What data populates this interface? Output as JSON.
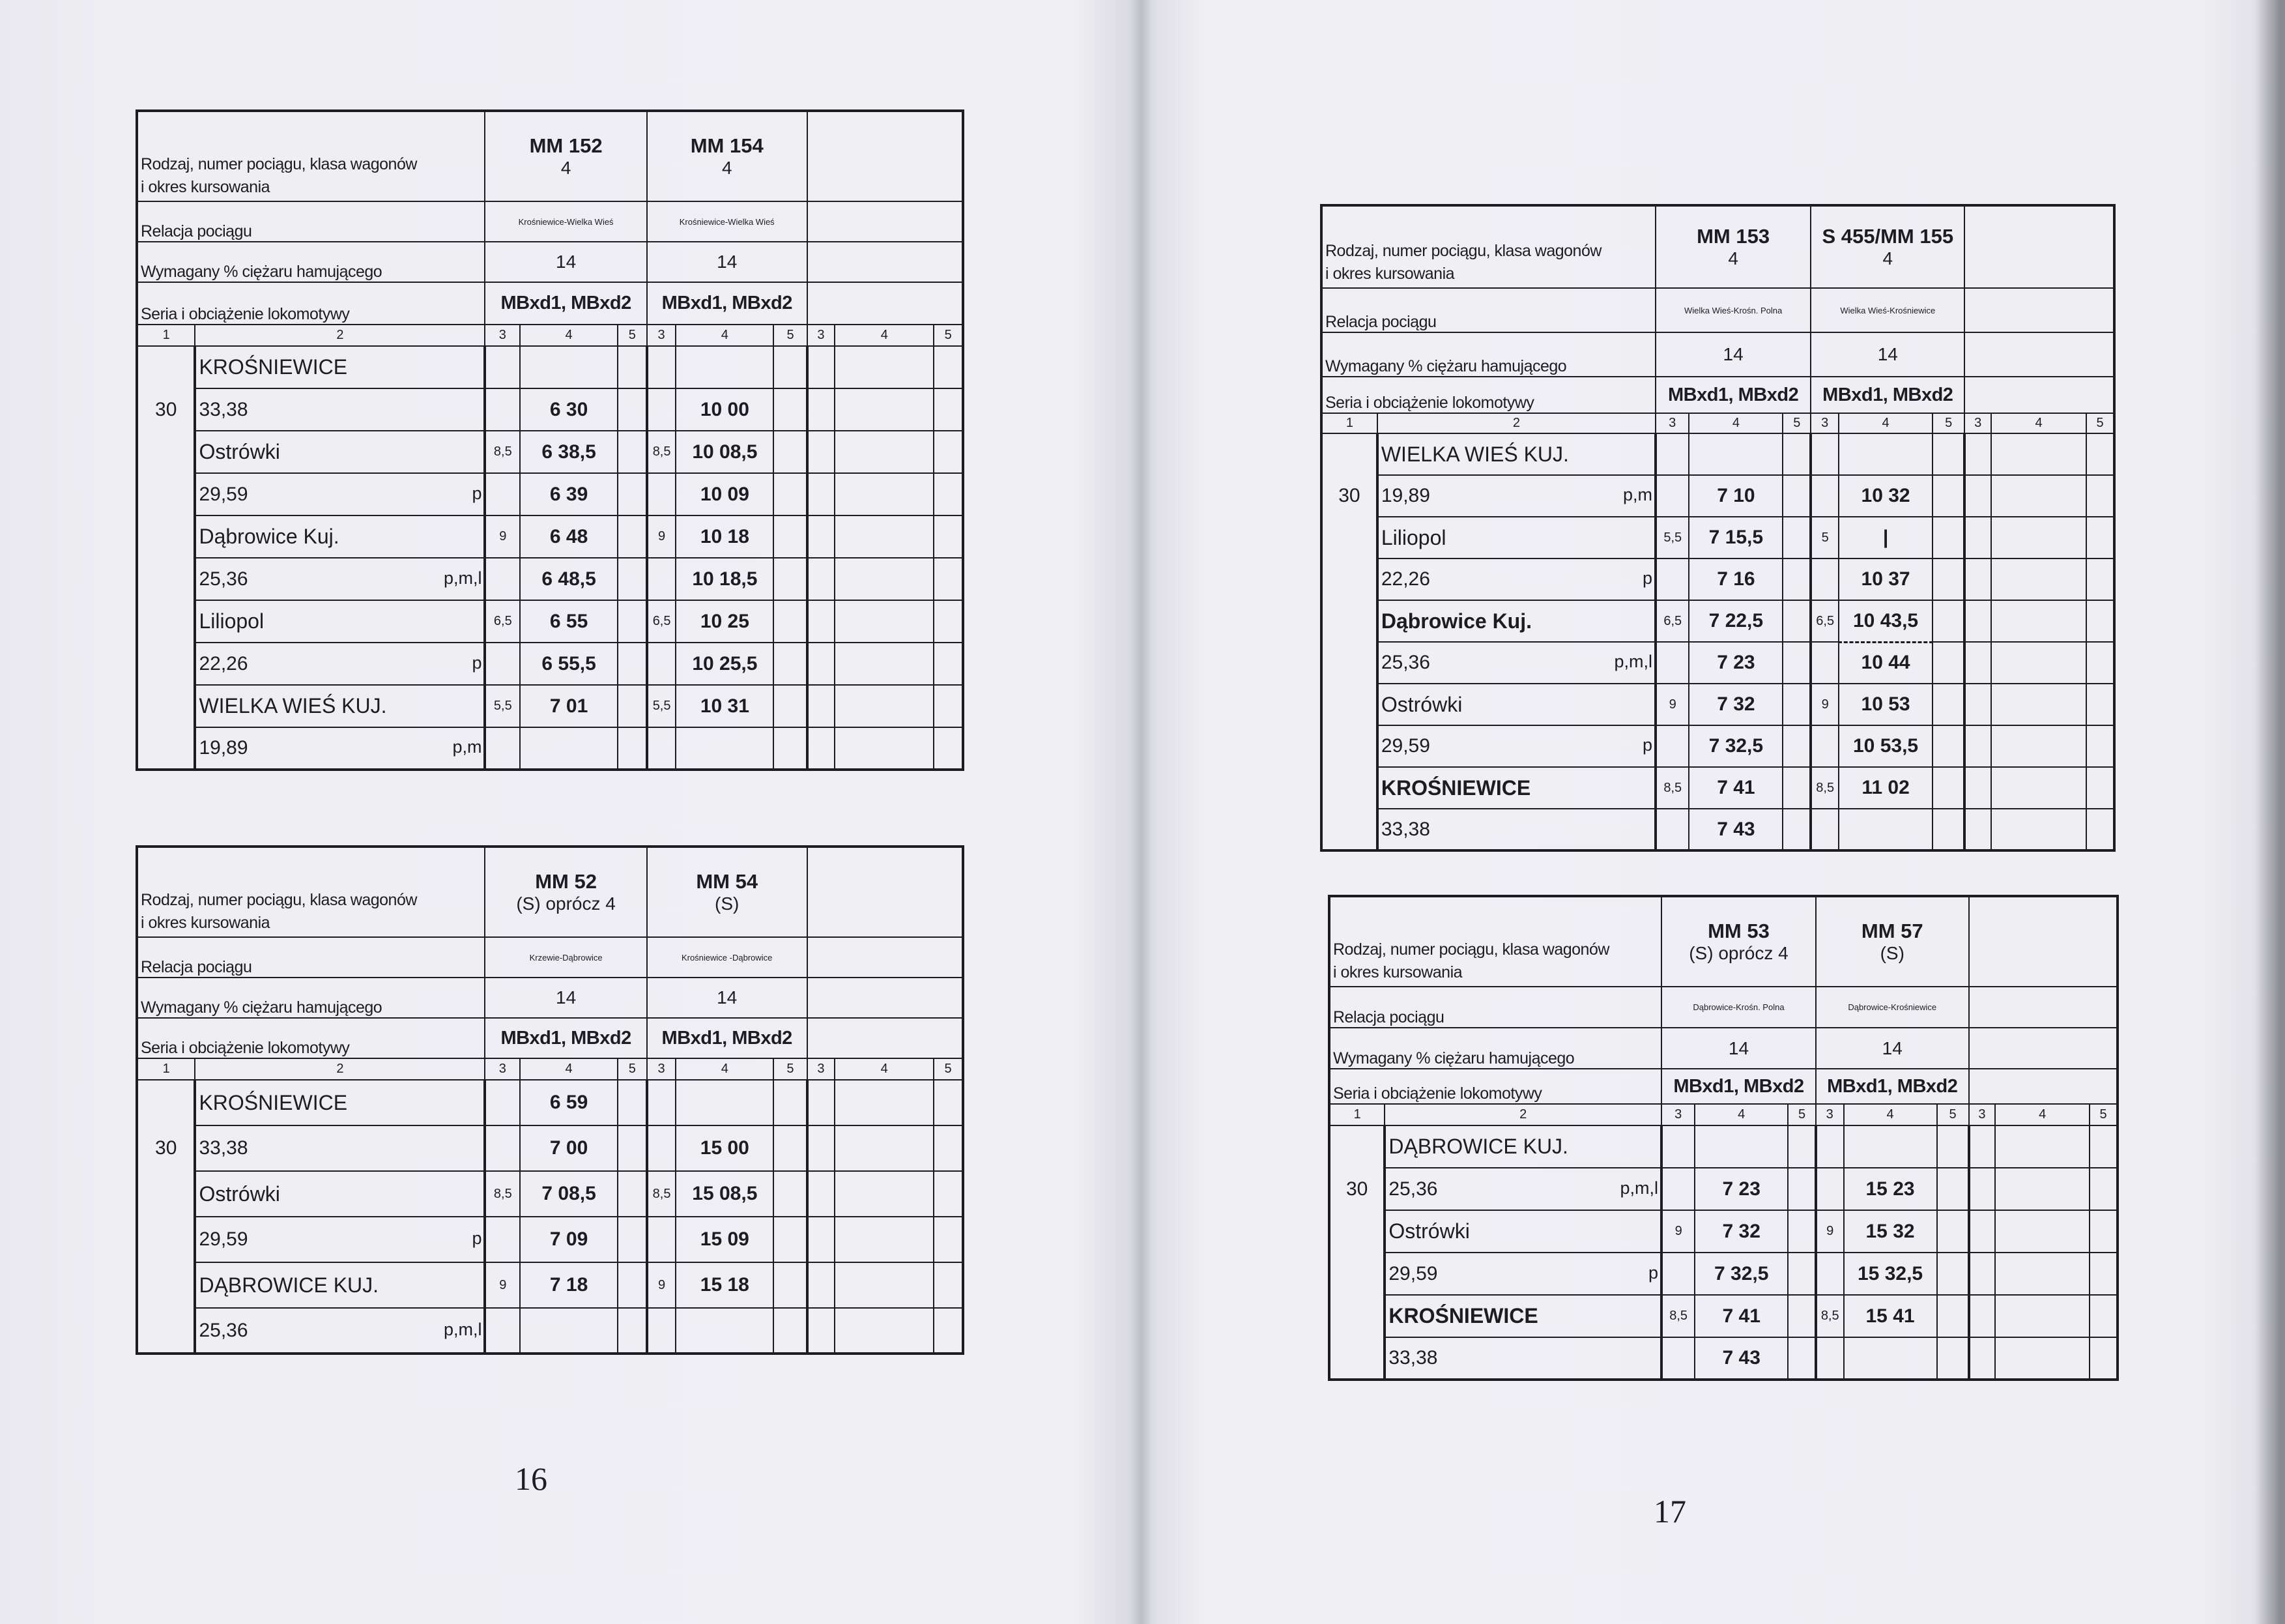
{
  "labels": {
    "row_kind": "Rodzaj, numer pociągu, klasa wagonów",
    "row_period": "i okres kursowania",
    "row_relation": "Relacja pociągu",
    "row_brake": "Wymagany % ciężaru hamującego",
    "row_loco": "Seria i obciążenie lokomotywy",
    "column_numbers": [
      "1",
      "2",
      "3",
      "4",
      "5",
      "3",
      "4",
      "5",
      "3",
      "4",
      "5"
    ]
  },
  "pages": [
    {
      "number": "16"
    },
    {
      "number": "17"
    }
  ],
  "tables": [
    {
      "trains": [
        {
          "number": "MM 152",
          "period": "4",
          "relation": "Krośniewice-Wielka Wieś",
          "brake_pct": "14",
          "loco": "MBxd1, MBxd2"
        },
        {
          "number": "MM 154",
          "period": "4",
          "relation": "Krośniewice-Wielka Wieś",
          "brake_pct": "14",
          "loco": "MBxd1, MBxd2"
        }
      ],
      "rows": [
        {
          "type": "station",
          "name": "KROŚNIEWICE",
          "cells": [
            [
              "",
              "",
              ""
            ],
            [
              "",
              "",
              ""
            ]
          ]
        },
        {
          "type": "km",
          "line": "30",
          "km": "33,38",
          "mark": "",
          "cells": [
            [
              "",
              "6 30",
              ""
            ],
            [
              "",
              "10 00",
              ""
            ]
          ]
        },
        {
          "type": "station",
          "name": "Ostrówki",
          "cells": [
            [
              "8,5",
              "6 38,5",
              ""
            ],
            [
              "8,5",
              "10 08,5",
              ""
            ]
          ]
        },
        {
          "type": "km",
          "km": "29,59",
          "mark": "p",
          "cells": [
            [
              "",
              "6 39",
              ""
            ],
            [
              "",
              "10 09",
              ""
            ]
          ]
        },
        {
          "type": "station",
          "name": "Dąbrowice Kuj.",
          "cells": [
            [
              "9",
              "6 48",
              ""
            ],
            [
              "9",
              "10 18",
              ""
            ]
          ]
        },
        {
          "type": "km",
          "km": "25,36",
          "mark": "p,m,l",
          "cells": [
            [
              "",
              "6 48,5",
              ""
            ],
            [
              "",
              "10 18,5",
              ""
            ]
          ]
        },
        {
          "type": "station",
          "name": "Liliopol",
          "cells": [
            [
              "6,5",
              "6 55",
              ""
            ],
            [
              "6,5",
              "10 25",
              ""
            ]
          ]
        },
        {
          "type": "km",
          "km": "22,26",
          "mark": "p",
          "cells": [
            [
              "",
              "6 55,5",
              ""
            ],
            [
              "",
              "10 25,5",
              ""
            ]
          ]
        },
        {
          "type": "station",
          "name": "WIELKA WIEŚ KUJ.",
          "cells": [
            [
              "5,5",
              "7 01",
              ""
            ],
            [
              "5,5",
              "10 31",
              ""
            ]
          ]
        },
        {
          "type": "km",
          "km": "19,89",
          "mark": "p,m",
          "cells": [
            [
              "",
              "",
              ""
            ],
            [
              "",
              "",
              ""
            ]
          ]
        }
      ]
    },
    {
      "trains": [
        {
          "number": "MM 52",
          "period": "(S) oprócz 4",
          "relation": "Krzewie-Dąbrowice",
          "brake_pct": "14",
          "loco": "MBxd1, MBxd2"
        },
        {
          "number": "MM 54",
          "period": "(S)",
          "relation": "Krośniewice -Dąbrowice",
          "brake_pct": "14",
          "loco": "MBxd1, MBxd2"
        }
      ],
      "rows": [
        {
          "type": "station",
          "name": "KROŚNIEWICE",
          "cells": [
            [
              "",
              "6 59",
              ""
            ],
            [
              "",
              "",
              ""
            ]
          ]
        },
        {
          "type": "km",
          "line": "30",
          "km": "33,38",
          "mark": "",
          "cells": [
            [
              "",
              "7 00",
              ""
            ],
            [
              "",
              "15 00",
              ""
            ]
          ]
        },
        {
          "type": "station",
          "name": "Ostrówki",
          "cells": [
            [
              "8,5",
              "7 08,5",
              ""
            ],
            [
              "8,5",
              "15 08,5",
              ""
            ]
          ]
        },
        {
          "type": "km",
          "km": "29,59",
          "mark": "p",
          "cells": [
            [
              "",
              "7 09",
              ""
            ],
            [
              "",
              "15 09",
              ""
            ]
          ]
        },
        {
          "type": "station",
          "name": "DĄBROWICE KUJ.",
          "cells": [
            [
              "9",
              "7 18",
              ""
            ],
            [
              "9",
              "15 18",
              ""
            ]
          ]
        },
        {
          "type": "km",
          "km": "25,36",
          "mark": "p,m,l",
          "cells": [
            [
              "",
              "",
              ""
            ],
            [
              "",
              "",
              ""
            ]
          ]
        }
      ]
    },
    {
      "trains": [
        {
          "number": "MM 153",
          "period": "4",
          "relation": "Wielka Wieś-Krośn. Polna",
          "brake_pct": "14",
          "loco": "MBxd1, MBxd2"
        },
        {
          "number": "S 455/MM 155",
          "period": "4",
          "relation": "Wielka Wieś-Krośniewice",
          "brake_pct": "14",
          "loco": "MBxd1, MBxd2"
        }
      ],
      "rows": [
        {
          "type": "station",
          "name": "WIELKA WIEŚ KUJ.",
          "cells": [
            [
              "",
              "",
              ""
            ],
            [
              "",
              "",
              ""
            ]
          ]
        },
        {
          "type": "km",
          "line": "30",
          "km": "19,89",
          "mark": "p,m",
          "cells": [
            [
              "",
              "7 10",
              ""
            ],
            [
              "",
              "10 32",
              ""
            ]
          ]
        },
        {
          "type": "station",
          "name": "Liliopol",
          "cells": [
            [
              "5,5",
              "7 15,5",
              ""
            ],
            [
              "5",
              "|",
              ""
            ]
          ]
        },
        {
          "type": "km",
          "km": "22,26",
          "mark": "p",
          "cells": [
            [
              "",
              "7 16",
              ""
            ],
            [
              "",
              "10 37",
              ""
            ]
          ]
        },
        {
          "type": "station",
          "name": "Dąbrowice Kuj.",
          "bold": true,
          "dashed_train": 1,
          "cells": [
            [
              "6,5",
              "7 22,5",
              ""
            ],
            [
              "6,5",
              "10 43,5",
              ""
            ]
          ]
        },
        {
          "type": "km",
          "km": "25,36",
          "mark": "p,m,l",
          "cells": [
            [
              "",
              "7 23",
              ""
            ],
            [
              "",
              "10 44",
              ""
            ]
          ]
        },
        {
          "type": "station",
          "name": "Ostrówki",
          "cells": [
            [
              "9",
              "7 32",
              ""
            ],
            [
              "9",
              "10 53",
              ""
            ]
          ]
        },
        {
          "type": "km",
          "km": "29,59",
          "mark": "p",
          "cells": [
            [
              "",
              "7 32,5",
              ""
            ],
            [
              "",
              "10 53,5",
              ""
            ]
          ]
        },
        {
          "type": "station",
          "name": "KROŚNIEWICE",
          "bold": true,
          "cells": [
            [
              "8,5",
              "7 41",
              ""
            ],
            [
              "8,5",
              "11 02",
              ""
            ]
          ]
        },
        {
          "type": "km",
          "km": "33,38",
          "mark": "",
          "cells": [
            [
              "",
              "7 43",
              ""
            ],
            [
              "",
              "",
              ""
            ]
          ]
        }
      ]
    },
    {
      "trains": [
        {
          "number": "MM 53",
          "period": "(S) oprócz 4",
          "relation": "Dąbrowice-Krośn. Polna",
          "brake_pct": "14",
          "loco": "MBxd1, MBxd2"
        },
        {
          "number": "MM 57",
          "period": "(S)",
          "relation": "Dąbrowice-Krośniewice",
          "brake_pct": "14",
          "loco": "MBxd1, MBxd2"
        }
      ],
      "rows": [
        {
          "type": "station",
          "name": "DĄBROWICE KUJ.",
          "cells": [
            [
              "",
              "",
              ""
            ],
            [
              "",
              "",
              ""
            ]
          ]
        },
        {
          "type": "km",
          "line": "30",
          "km": "25,36",
          "mark": "p,m,l",
          "cells": [
            [
              "",
              "7 23",
              ""
            ],
            [
              "",
              "15 23",
              ""
            ]
          ]
        },
        {
          "type": "station",
          "name": "Ostrówki",
          "cells": [
            [
              "9",
              "7 32",
              ""
            ],
            [
              "9",
              "15 32",
              ""
            ]
          ]
        },
        {
          "type": "km",
          "km": "29,59",
          "mark": "p",
          "cells": [
            [
              "",
              "7 32,5",
              ""
            ],
            [
              "",
              "15 32,5",
              ""
            ]
          ]
        },
        {
          "type": "station",
          "name": "KROŚNIEWICE",
          "bold": true,
          "cells": [
            [
              "8,5",
              "7 41",
              ""
            ],
            [
              "8,5",
              "15 41",
              ""
            ]
          ]
        },
        {
          "type": "km",
          "km": "33,38",
          "mark": "",
          "cells": [
            [
              "",
              "7 43",
              ""
            ],
            [
              "",
              "",
              ""
            ]
          ]
        }
      ]
    }
  ]
}
